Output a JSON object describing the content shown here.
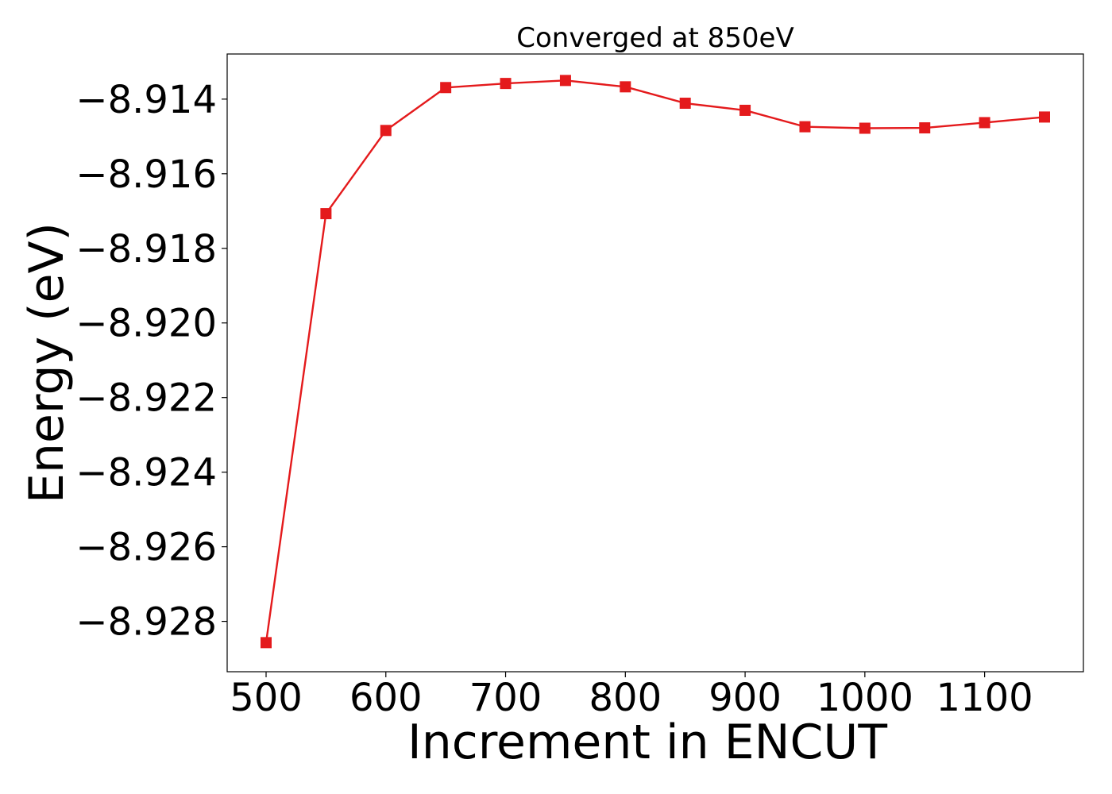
{
  "chart_data": {
    "type": "line",
    "title": "Converged at 850eV",
    "xlabel": "Increment in ENCUT",
    "ylabel": "Energy (eV)",
    "xlim": [
      467.5,
      1182.5
    ],
    "ylim": [
      -8.92935,
      -8.91279
    ],
    "xticks": [
      500,
      600,
      700,
      800,
      900,
      1000,
      1100
    ],
    "xtick_labels": [
      "500",
      "600",
      "700",
      "800",
      "900",
      "1000",
      "1100"
    ],
    "yticks": [
      -8.914,
      -8.916,
      -8.918,
      -8.92,
      -8.922,
      -8.924,
      -8.926,
      -8.928
    ],
    "ytick_labels": [
      "−8.914",
      "−8.916",
      "−8.918",
      "−8.920",
      "−8.922",
      "−8.924",
      "−8.926",
      "−8.928"
    ],
    "grid": false,
    "series": [
      {
        "color": "#e41a1c",
        "marker": "square",
        "x": [
          500,
          550,
          600,
          650,
          700,
          750,
          800,
          850,
          900,
          950,
          1000,
          1050,
          1100,
          1150
        ],
        "y": [
          -8.92857,
          -8.91707,
          -8.91484,
          -8.91369,
          -8.91358,
          -8.9135,
          -8.91367,
          -8.91411,
          -8.9143,
          -8.91474,
          -8.91478,
          -8.91477,
          -8.91463,
          -8.91448
        ]
      }
    ]
  }
}
